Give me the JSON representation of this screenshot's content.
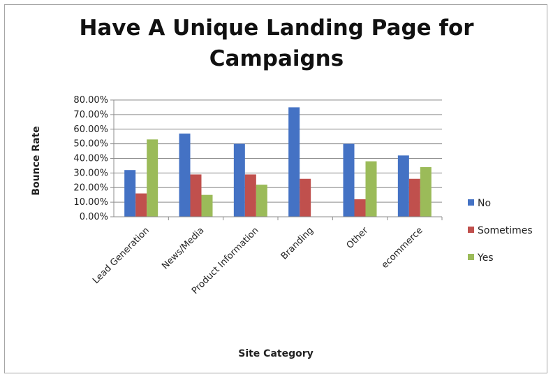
{
  "chart_data": {
    "type": "bar",
    "title_line1": "Have A Unique Landing Page for",
    "title_line2": "Campaigns",
    "xlabel": "Site Category",
    "ylabel": "Bounce Rate",
    "ylim": [
      0,
      80
    ],
    "yticks": [
      "0.00%",
      "10.00%",
      "20.00%",
      "30.00%",
      "40.00%",
      "50.00%",
      "60.00%",
      "70.00%",
      "80.00%"
    ],
    "grid": true,
    "legend_position": "right",
    "categories": [
      "Lead Generation",
      "News/Media",
      "Product Information",
      "Branding",
      "Other",
      "ecommerce"
    ],
    "series": [
      {
        "name": "No",
        "color": "#4472c4",
        "values": [
          32,
          57,
          50,
          75,
          50,
          42
        ]
      },
      {
        "name": "Sometimes",
        "color": "#c0504d",
        "values": [
          16,
          29,
          29,
          26,
          12,
          26
        ]
      },
      {
        "name": "Yes",
        "color": "#9bbb59",
        "values": [
          53,
          15,
          22,
          0,
          38,
          34
        ]
      }
    ]
  }
}
